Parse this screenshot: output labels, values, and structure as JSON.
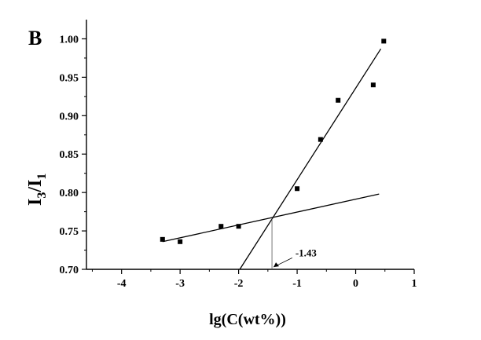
{
  "chart_data": {
    "type": "scatter",
    "panel_label": "B",
    "xlabel": "lg(C(wt%))",
    "ylabel_main": "I",
    "ylabel_sub1": "3",
    "ylabel_sep": "/I",
    "ylabel_sub2": "1",
    "xlim": [
      -4.6,
      1.0
    ],
    "ylim": [
      0.7,
      1.025
    ],
    "xticks": [
      -4,
      -3,
      -2,
      -1,
      0,
      1
    ],
    "yticks": [
      0.7,
      0.75,
      0.8,
      0.85,
      0.9,
      0.95,
      1.0
    ],
    "xtick_labels": [
      "-4",
      "-3",
      "-2",
      "-1",
      "0",
      "1"
    ],
    "ytick_labels": [
      "0.70",
      "0.75",
      "0.80",
      "0.85",
      "0.90",
      "0.95",
      "1.00"
    ],
    "points": [
      {
        "x": -3.3,
        "y": 0.739
      },
      {
        "x": -3.0,
        "y": 0.736
      },
      {
        "x": -2.3,
        "y": 0.756
      },
      {
        "x": -2.0,
        "y": 0.756
      },
      {
        "x": -1.0,
        "y": 0.805
      },
      {
        "x": -0.6,
        "y": 0.869
      },
      {
        "x": -0.3,
        "y": 0.92
      },
      {
        "x": 0.3,
        "y": 0.94
      },
      {
        "x": 0.48,
        "y": 0.997
      }
    ],
    "fit_lines": [
      {
        "x": [
          -3.3,
          0.4
        ],
        "y": [
          0.736,
          0.798
        ]
      },
      {
        "x": [
          -1.98,
          0.43
        ],
        "y": [
          0.7,
          0.987
        ]
      }
    ],
    "intersection": {
      "x": -1.43,
      "y": 0.766
    },
    "annotation": {
      "text": "-1.43",
      "x": -1.43,
      "y": 0.766,
      "text_x": -1.03,
      "text_y": 0.717
    }
  }
}
